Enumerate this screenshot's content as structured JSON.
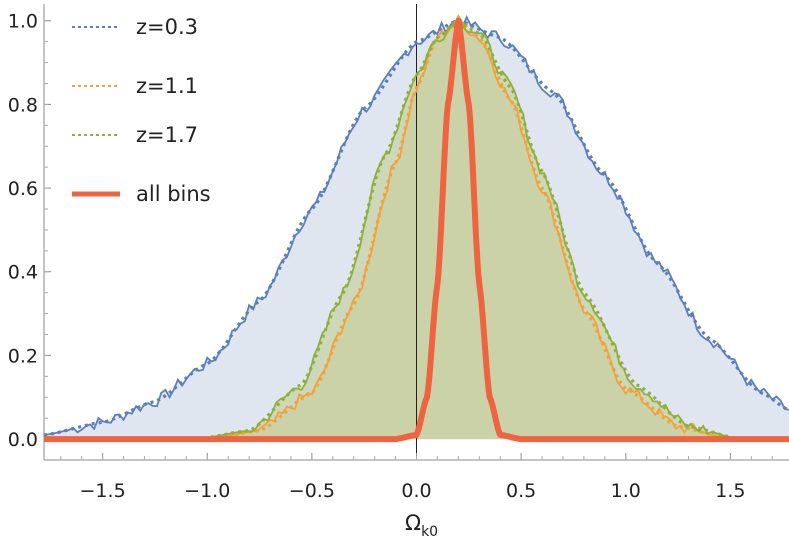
{
  "chart_data": {
    "type": "line",
    "title": "",
    "xlabel": "Ω",
    "xlabel_sub": "k0",
    "ylabel": "",
    "xlim": [
      -1.78,
      1.78
    ],
    "ylim": [
      -0.05,
      1.04
    ],
    "x_ticks": [
      -1.5,
      -1.0,
      -0.5,
      0.0,
      0.5,
      1.0,
      1.5
    ],
    "x_tick_labels": [
      "−1.5",
      "−1.0",
      "−0.5",
      "0.0",
      "0.5",
      "1.0",
      "1.5"
    ],
    "y_ticks": [
      0.0,
      0.2,
      0.4,
      0.6,
      0.8,
      1.0
    ],
    "y_tick_labels": [
      "0.0",
      "0.2",
      "0.4",
      "0.6",
      "0.8",
      "1.0"
    ],
    "vertical_line_x": 0.0,
    "legend_position": "top-left",
    "legend": [
      "z=0.3",
      "z=1.1",
      "z=1.7",
      "all bins"
    ],
    "series": [
      {
        "name": "z=0.3",
        "color": "#5b7fba",
        "fill": "#dfe6f0",
        "style": "dotted-fit + noisy-histogram",
        "x": [
          -1.78,
          -1.5,
          -1.25,
          -1.0,
          -0.75,
          -0.5,
          -0.25,
          0.0,
          0.2,
          0.4,
          0.65,
          0.9,
          1.15,
          1.4,
          1.65,
          1.78
        ],
        "y": [
          0.01,
          0.04,
          0.09,
          0.18,
          0.33,
          0.55,
          0.79,
          0.95,
          1.0,
          0.96,
          0.83,
          0.63,
          0.42,
          0.24,
          0.11,
          0.07
        ]
      },
      {
        "name": "z=1.1",
        "color": "#f0a33b",
        "fill": "#d2c48a",
        "style": "dotted-fit + noisy-histogram",
        "x": [
          -1.0,
          -0.75,
          -0.5,
          -0.3,
          -0.1,
          0.0,
          0.1,
          0.2,
          0.3,
          0.45,
          0.6,
          0.8,
          1.0,
          1.25,
          1.5
        ],
        "y": [
          0.0,
          0.02,
          0.11,
          0.32,
          0.66,
          0.84,
          0.96,
          1.0,
          0.96,
          0.81,
          0.6,
          0.31,
          0.12,
          0.03,
          0.0
        ]
      },
      {
        "name": "z=1.7",
        "color": "#8fb03a",
        "fill": "#c7d3a9",
        "style": "dotted-fit + noisy-histogram",
        "x": [
          -1.05,
          -0.8,
          -0.55,
          -0.35,
          -0.15,
          0.0,
          0.1,
          0.2,
          0.3,
          0.45,
          0.6,
          0.8,
          1.05,
          1.3,
          1.55
        ],
        "y": [
          0.0,
          0.02,
          0.13,
          0.35,
          0.68,
          0.87,
          0.96,
          1.0,
          0.97,
          0.84,
          0.64,
          0.35,
          0.13,
          0.03,
          0.0
        ]
      },
      {
        "name": "all bins",
        "color": "#ee6340",
        "style": "solid-thick",
        "x": [
          -1.78,
          -0.1,
          0.0,
          0.05,
          0.1,
          0.15,
          0.2,
          0.25,
          0.3,
          0.35,
          0.4,
          0.5,
          1.78
        ],
        "y": [
          0.0,
          0.0,
          0.01,
          0.1,
          0.37,
          0.8,
          1.0,
          0.8,
          0.37,
          0.1,
          0.01,
          0.0,
          0.0
        ]
      }
    ]
  }
}
